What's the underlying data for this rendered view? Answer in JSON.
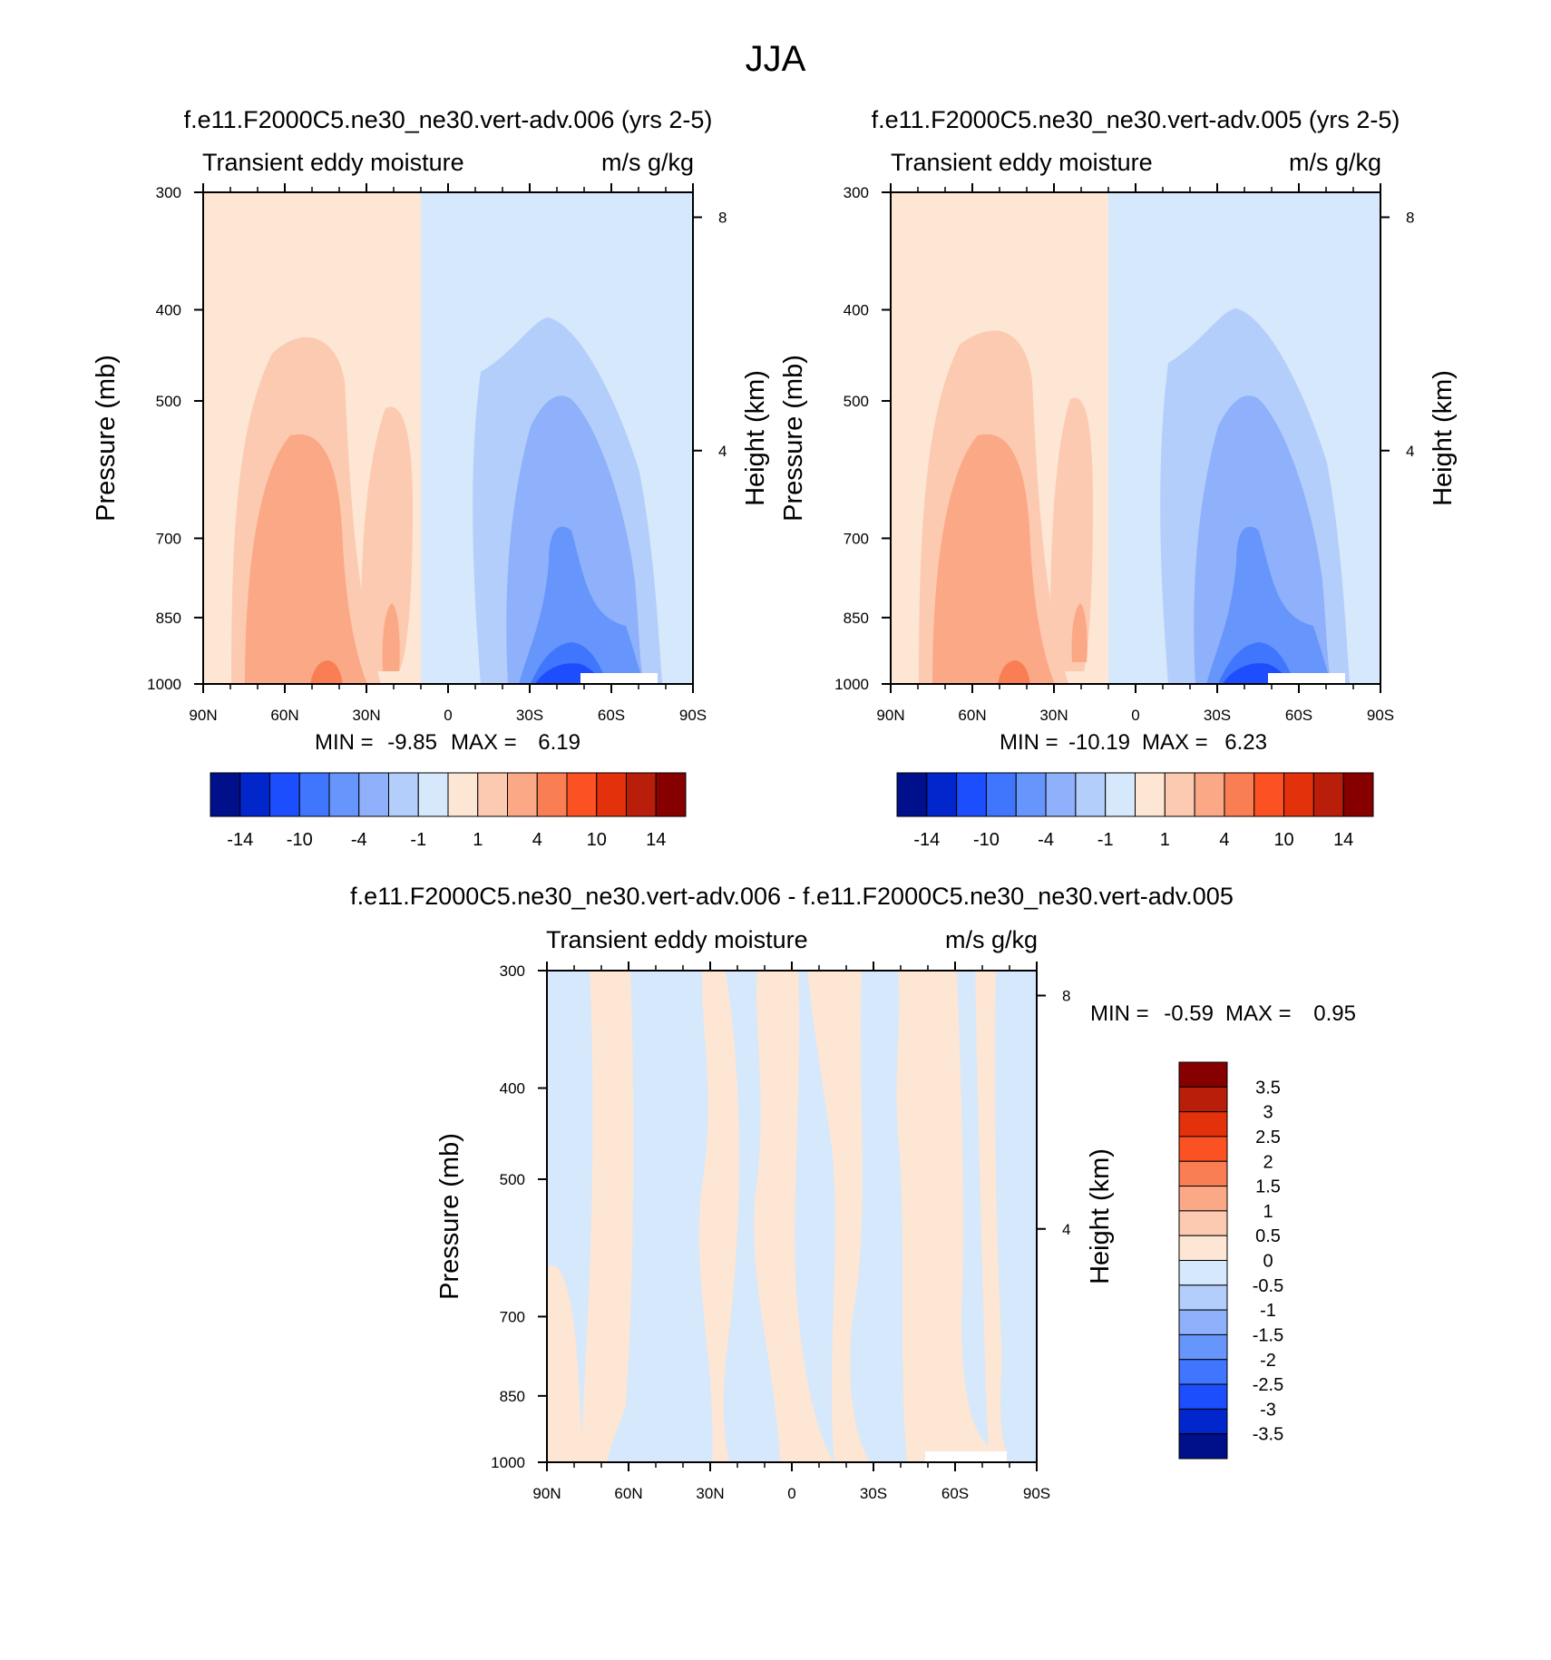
{
  "figure": {
    "title": "JJA"
  },
  "colors": {
    "warm_scale": [
      "#fde6d4",
      "#fccab0",
      "#fba886",
      "#fa7e53",
      "#fc5122",
      "#e2310b",
      "#b81e09",
      "#870000"
    ],
    "cool_scale": [
      "#d6e8fb",
      "#b3cefb",
      "#8fb0fa",
      "#6695fb",
      "#3f76fd",
      "#1d4efd",
      "#0026cc",
      "#000f8a"
    ],
    "frame": "#000000"
  },
  "chart_data": [
    {
      "type": "heatmap",
      "id": "panel_006",
      "title": "f.e11.F2000C5.ne30_ne30.vert-adv.006 (yrs 2-5)",
      "left_string": "Transient eddy moisture",
      "right_string": "m/s g/kg",
      "ylabel": "Pressure (mb)",
      "y2label": "Height (km)",
      "x_ticks": [
        "90N",
        "60N",
        "30N",
        "0",
        "30S",
        "60S",
        "90S"
      ],
      "x_range": [
        90,
        -90
      ],
      "y_ticks": [
        "300",
        "400",
        "500",
        "700",
        "850",
        "1000"
      ],
      "y_range": [
        1000,
        300
      ],
      "y_scale": "log",
      "y2_ticks": [
        "8",
        "4"
      ],
      "stats": {
        "min_label": "MIN =",
        "min": "-9.85",
        "max_label": "MAX =",
        "max": "6.19"
      },
      "colorbar": {
        "orientation": "horizontal",
        "levels": [
          -14,
          -12,
          -10,
          -8,
          -4,
          -2,
          -1,
          0,
          1,
          2,
          4,
          8,
          10,
          12,
          14
        ],
        "tick_labels": [
          "-14",
          "-10",
          "-4",
          "-1",
          "1",
          "4",
          "10",
          "14"
        ]
      }
    },
    {
      "type": "heatmap",
      "id": "panel_005",
      "title": "f.e11.F2000C5.ne30_ne30.vert-adv.005 (yrs 2-5)",
      "left_string": "Transient eddy moisture",
      "right_string": "m/s g/kg",
      "ylabel": "Pressure (mb)",
      "y2label": "Height (km)",
      "x_ticks": [
        "90N",
        "60N",
        "30N",
        "0",
        "30S",
        "60S",
        "90S"
      ],
      "x_range": [
        90,
        -90
      ],
      "y_ticks": [
        "300",
        "400",
        "500",
        "700",
        "850",
        "1000"
      ],
      "y_range": [
        1000,
        300
      ],
      "y_scale": "log",
      "y2_ticks": [
        "8",
        "4"
      ],
      "stats": {
        "min_label": "MIN =",
        "min": "-10.19",
        "max_label": "MAX =",
        "max": "6.23"
      },
      "colorbar": {
        "orientation": "horizontal",
        "levels": [
          -14,
          -12,
          -10,
          -8,
          -4,
          -2,
          -1,
          0,
          1,
          2,
          4,
          8,
          10,
          12,
          14
        ],
        "tick_labels": [
          "-14",
          "-10",
          "-4",
          "-1",
          "1",
          "4",
          "10",
          "14"
        ]
      }
    },
    {
      "type": "heatmap",
      "id": "panel_diff",
      "title": "f.e11.F2000C5.ne30_ne30.vert-adv.006 - f.e11.F2000C5.ne30_ne30.vert-adv.005",
      "left_string": "Transient eddy moisture",
      "right_string": "m/s g/kg",
      "ylabel": "Pressure (mb)",
      "y2label": "Height (km)",
      "x_ticks": [
        "90N",
        "60N",
        "30N",
        "0",
        "30S",
        "60S",
        "90S"
      ],
      "x_range": [
        90,
        -90
      ],
      "y_ticks": [
        "300",
        "400",
        "500",
        "700",
        "850",
        "1000"
      ],
      "y_range": [
        1000,
        300
      ],
      "y_scale": "log",
      "y2_ticks": [
        "8",
        "4"
      ],
      "stats": {
        "min_label": "MIN =",
        "min": "-0.59",
        "max_label": "MAX =",
        "max": "0.95"
      },
      "colorbar": {
        "orientation": "vertical",
        "levels": [
          3.5,
          3,
          2.5,
          2,
          1.5,
          1,
          0.5,
          0,
          -0.5,
          -1,
          -1.5,
          -2,
          -2.5,
          -3,
          -3.5
        ],
        "tick_labels": [
          "3.5",
          "3",
          "2.5",
          "2",
          "1.5",
          "1",
          "0.5",
          "0",
          "-0.5",
          "-1",
          "-1.5",
          "-2",
          "-2.5",
          "-3",
          "-3.5"
        ]
      }
    }
  ]
}
